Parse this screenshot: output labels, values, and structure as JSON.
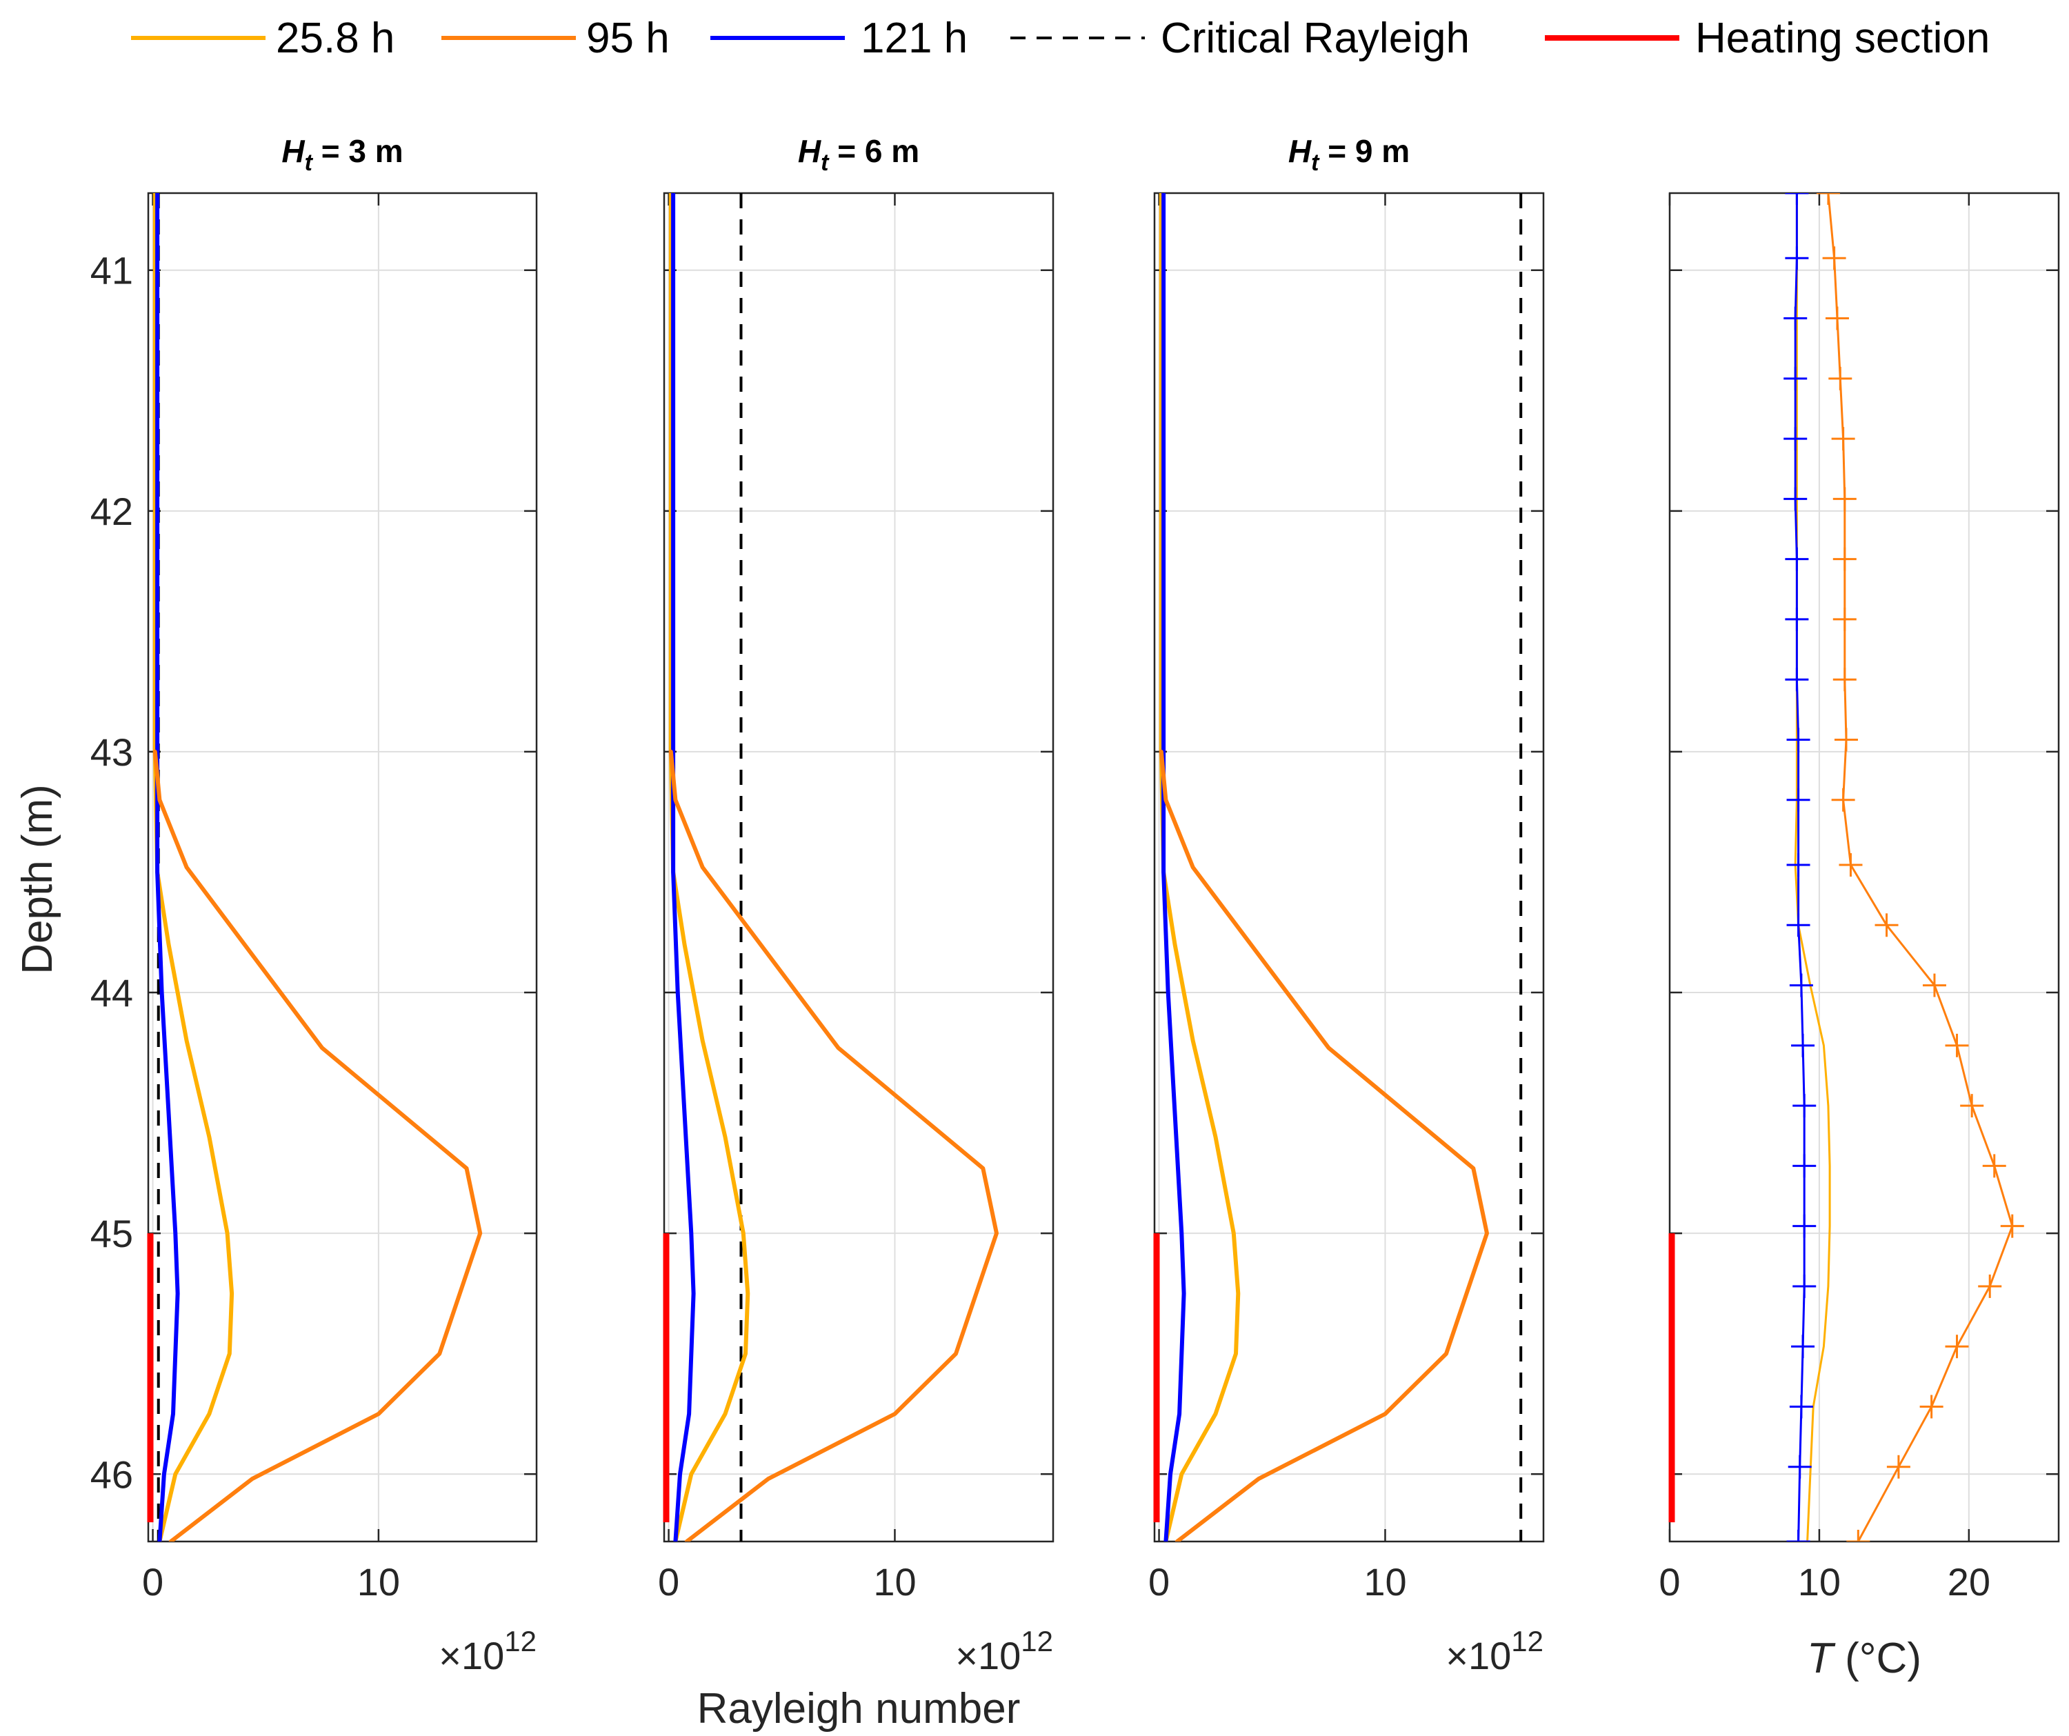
{
  "legend": {
    "entries": [
      {
        "label": "25.8 h",
        "color": "#FFB000",
        "style": "solid"
      },
      {
        "label": "95 h",
        "color": "#FF7F0E",
        "style": "solid"
      },
      {
        "label": "121 h",
        "color": "#0000FF",
        "style": "solid"
      },
      {
        "label": "Critical Rayleigh",
        "color": "#000000",
        "style": "dashed"
      },
      {
        "label": "Heating section",
        "color": "#FF0000",
        "style": "solid-thick"
      }
    ],
    "placement": "top"
  },
  "labels": {
    "ylabel": "Depth (m)",
    "xlabel_shared": "Rayleigh number",
    "exponent_base": "×10",
    "exponent_power": "12",
    "temp_xlabel_italic": "T",
    "temp_xlabel_rest": " (°C)"
  },
  "chart_data": [
    {
      "type": "line",
      "title_sym": "H",
      "title_sub": "t",
      "title_rest": " = 3 m",
      "xlabel": "",
      "ylabel": "Depth (m)",
      "xlim": [
        -0.2,
        17
      ],
      "ylim": [
        40.68,
        46.28
      ],
      "y_reversed": true,
      "x_scale_exponent": 12,
      "grid": true,
      "xticks": [
        0,
        10
      ],
      "yticks": [
        41,
        42,
        43,
        44,
        45,
        46
      ],
      "critical_rayleigh": 0.25,
      "heating_section": [
        45,
        46.2
      ],
      "series": [
        {
          "name": "25.8 h",
          "x": [
            0.1,
            0.1,
            0.2,
            0.7,
            1.5,
            2.5,
            3.3,
            3.5,
            3.4,
            2.5,
            1.0,
            0.3
          ],
          "y": [
            40.68,
            43.0,
            43.5,
            43.8,
            44.2,
            44.6,
            45.0,
            45.25,
            45.5,
            45.75,
            46.0,
            46.28
          ]
        },
        {
          "name": "95 h",
          "x": [
            0.1,
            0.3,
            1.5,
            7.5,
            13.9,
            14.5,
            12.7,
            10.0,
            4.4,
            0.8
          ],
          "y": [
            43.0,
            43.2,
            43.48,
            44.23,
            44.73,
            45.0,
            45.5,
            45.75,
            46.02,
            46.28
          ]
        },
        {
          "name": "121 h",
          "x": [
            0.2,
            0.2,
            0.2,
            0.4,
            0.7,
            1.0,
            1.1,
            0.9,
            0.5,
            0.3
          ],
          "y": [
            40.68,
            43.0,
            43.5,
            44.0,
            44.5,
            45.0,
            45.25,
            45.75,
            46.0,
            46.28
          ]
        }
      ]
    },
    {
      "type": "line",
      "title_sym": "H",
      "title_sub": "t",
      "title_rest": " = 6 m",
      "xlabel": "Rayleigh number",
      "ylabel": "",
      "xlim": [
        -0.2,
        17
      ],
      "ylim": [
        40.68,
        46.28
      ],
      "y_reversed": true,
      "x_scale_exponent": 12,
      "grid": true,
      "xticks": [
        0,
        10
      ],
      "yticks": [
        41,
        42,
        43,
        44,
        45,
        46
      ],
      "critical_rayleigh": 3.2,
      "heating_section": [
        45,
        46.2
      ],
      "series": [
        {
          "name": "25.8 h",
          "x": [
            0.1,
            0.1,
            0.2,
            0.7,
            1.5,
            2.5,
            3.3,
            3.5,
            3.4,
            2.5,
            1.0,
            0.3
          ],
          "y": [
            40.68,
            43.0,
            43.5,
            43.8,
            44.2,
            44.6,
            45.0,
            45.25,
            45.5,
            45.75,
            46.0,
            46.28
          ]
        },
        {
          "name": "95 h",
          "x": [
            0.1,
            0.3,
            1.5,
            7.5,
            13.9,
            14.5,
            12.7,
            10.0,
            4.4,
            0.8
          ],
          "y": [
            43.0,
            43.2,
            43.48,
            44.23,
            44.73,
            45.0,
            45.5,
            45.75,
            46.02,
            46.28
          ]
        },
        {
          "name": "121 h",
          "x": [
            0.2,
            0.2,
            0.2,
            0.4,
            0.7,
            1.0,
            1.1,
            0.9,
            0.5,
            0.3
          ],
          "y": [
            40.68,
            43.0,
            43.5,
            44.0,
            44.5,
            45.0,
            45.25,
            45.75,
            46.0,
            46.28
          ]
        }
      ]
    },
    {
      "type": "line",
      "title_sym": "H",
      "title_sub": "t",
      "title_rest": " = 9 m",
      "xlabel": "",
      "ylabel": "",
      "xlim": [
        -0.2,
        17
      ],
      "ylim": [
        40.68,
        46.28
      ],
      "y_reversed": true,
      "x_scale_exponent": 12,
      "grid": true,
      "xticks": [
        0,
        10
      ],
      "yticks": [
        41,
        42,
        43,
        44,
        45,
        46
      ],
      "critical_rayleigh": 16.0,
      "heating_section": [
        45,
        46.2
      ],
      "series": [
        {
          "name": "25.8 h",
          "x": [
            0.1,
            0.1,
            0.2,
            0.7,
            1.5,
            2.5,
            3.3,
            3.5,
            3.4,
            2.5,
            1.0,
            0.3
          ],
          "y": [
            40.68,
            43.0,
            43.5,
            43.8,
            44.2,
            44.6,
            45.0,
            45.25,
            45.5,
            45.75,
            46.0,
            46.28
          ]
        },
        {
          "name": "95 h",
          "x": [
            0.1,
            0.3,
            1.5,
            7.5,
            13.9,
            14.5,
            12.7,
            10.0,
            4.4,
            0.8
          ],
          "y": [
            43.0,
            43.2,
            43.48,
            44.23,
            44.73,
            45.0,
            45.5,
            45.75,
            46.02,
            46.28
          ]
        },
        {
          "name": "121 h",
          "x": [
            0.2,
            0.2,
            0.2,
            0.4,
            0.7,
            1.0,
            1.1,
            0.9,
            0.5,
            0.3
          ],
          "y": [
            40.68,
            43.0,
            43.5,
            44.0,
            44.5,
            45.0,
            45.25,
            45.75,
            46.0,
            46.28
          ]
        }
      ]
    },
    {
      "type": "line",
      "title_sym": "",
      "title_sub": "",
      "title_rest": "",
      "xlabel": "T (°C)",
      "ylabel": "",
      "xlim": [
        0,
        26
      ],
      "ylim": [
        40.68,
        46.28
      ],
      "y_reversed": true,
      "grid": true,
      "xticks": [
        0,
        10,
        20
      ],
      "yticks": [
        41,
        42,
        43,
        44,
        45,
        46
      ],
      "heating_section": [
        45,
        46.2
      ],
      "markers": "+",
      "series": [
        {
          "name": "25.8 h",
          "x": [
            8.5,
            8.5,
            8.5,
            8.5,
            8.5,
            8.5,
            8.5,
            8.5,
            8.5,
            8.5,
            8.5,
            8.4,
            8.6,
            9.4,
            10.3,
            10.6,
            10.7,
            10.7,
            10.6,
            10.3,
            9.6,
            9.2
          ],
          "y": [
            40.68,
            40.95,
            41.2,
            41.45,
            41.7,
            41.95,
            42.2,
            42.45,
            42.7,
            42.95,
            43.2,
            43.47,
            43.72,
            43.97,
            44.22,
            44.47,
            44.72,
            44.97,
            45.22,
            45.47,
            45.72,
            46.28
          ]
        },
        {
          "name": "95 h",
          "x": [
            10.6,
            11.0,
            11.2,
            11.4,
            11.6,
            11.7,
            11.7,
            11.7,
            11.7,
            11.8,
            11.6,
            12.1,
            14.5,
            17.7,
            19.2,
            20.2,
            21.7,
            22.9,
            21.4,
            19.2,
            17.5,
            15.3,
            12.6
          ],
          "y": [
            40.68,
            40.95,
            41.2,
            41.45,
            41.7,
            41.95,
            42.2,
            42.45,
            42.7,
            42.95,
            43.2,
            43.47,
            43.72,
            43.97,
            44.22,
            44.47,
            44.72,
            44.97,
            45.22,
            45.47,
            45.72,
            45.97,
            46.28
          ]
        },
        {
          "name": "121 h",
          "x": [
            8.5,
            8.5,
            8.4,
            8.4,
            8.4,
            8.4,
            8.5,
            8.5,
            8.5,
            8.6,
            8.6,
            8.6,
            8.6,
            8.8,
            8.9,
            9.0,
            9.0,
            9.0,
            9.0,
            8.9,
            8.8,
            8.7,
            8.6
          ],
          "y": [
            40.68,
            40.95,
            41.2,
            41.45,
            41.7,
            41.95,
            42.2,
            42.45,
            42.7,
            42.95,
            43.2,
            43.47,
            43.72,
            43.97,
            44.22,
            44.47,
            44.72,
            44.97,
            45.22,
            45.47,
            45.72,
            45.97,
            46.28
          ]
        }
      ]
    }
  ]
}
